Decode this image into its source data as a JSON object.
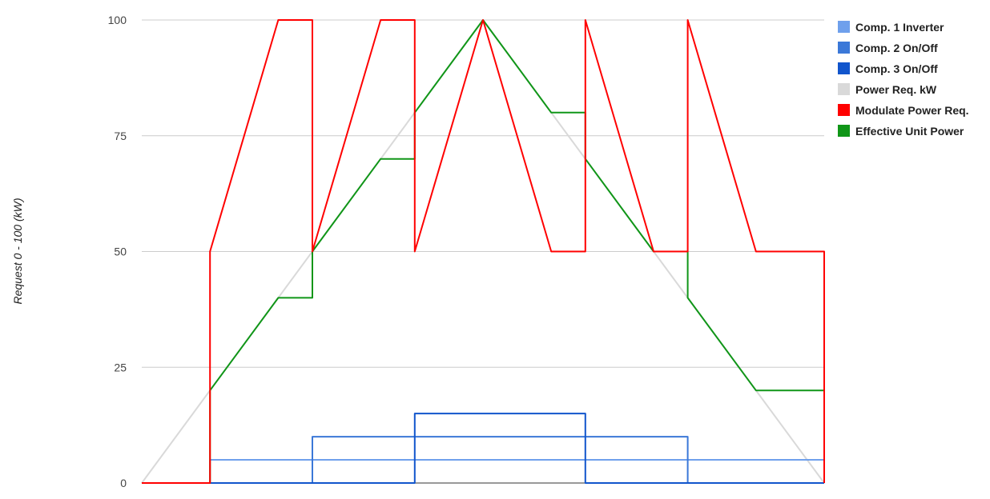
{
  "chart_data": {
    "type": "line",
    "title": "",
    "xlabel": "",
    "ylabel": "Request 0 - 100 (kW)",
    "ylim": [
      0,
      100
    ],
    "yticks": [
      "0",
      "25",
      "50",
      "75",
      "100"
    ],
    "xlim": [
      0,
      20
    ],
    "grid": true,
    "legend_position": "right",
    "series": [
      {
        "name": "Comp. 1 Inverter",
        "color": "#6fa0ec",
        "x": [
          0,
          2,
          2,
          20
        ],
        "y": [
          0,
          0,
          5,
          5
        ]
      },
      {
        "name": "Comp. 2 On/Off",
        "color": "#3b78d8",
        "x": [
          0,
          5,
          5,
          16,
          16,
          20
        ],
        "y": [
          0,
          0,
          10,
          10,
          0,
          0
        ]
      },
      {
        "name": "Comp. 3 On/Off",
        "color": "#1155cc",
        "x": [
          0,
          8,
          8,
          13,
          13,
          20
        ],
        "y": [
          0,
          0,
          15,
          15,
          0,
          0
        ]
      },
      {
        "name": "Power Req. kW",
        "color": "#d9d9d9",
        "x": [
          0,
          10,
          20
        ],
        "y": [
          0,
          100,
          0
        ]
      },
      {
        "name": "Modulate Power Req.",
        "color": "#ff0000",
        "x": [
          0,
          2,
          2,
          4,
          5,
          5,
          7,
          8,
          8,
          10,
          12,
          13,
          13,
          15,
          16,
          16,
          18,
          20,
          20
        ],
        "y": [
          0,
          0,
          50,
          100,
          100,
          50,
          100,
          100,
          50,
          100,
          50,
          50,
          100,
          50,
          50,
          100,
          50,
          50,
          0
        ]
      },
      {
        "name": "Effective Unit Power",
        "color": "#109618",
        "x": [
          0,
          2,
          2,
          4,
          5,
          5,
          7,
          8,
          8,
          10,
          12,
          13,
          13,
          15,
          16,
          16,
          18,
          20,
          20
        ],
        "y": [
          0,
          0,
          20,
          40,
          40,
          50,
          70,
          70,
          80,
          100,
          80,
          80,
          70,
          50,
          50,
          40,
          20,
          20,
          0
        ]
      }
    ]
  }
}
